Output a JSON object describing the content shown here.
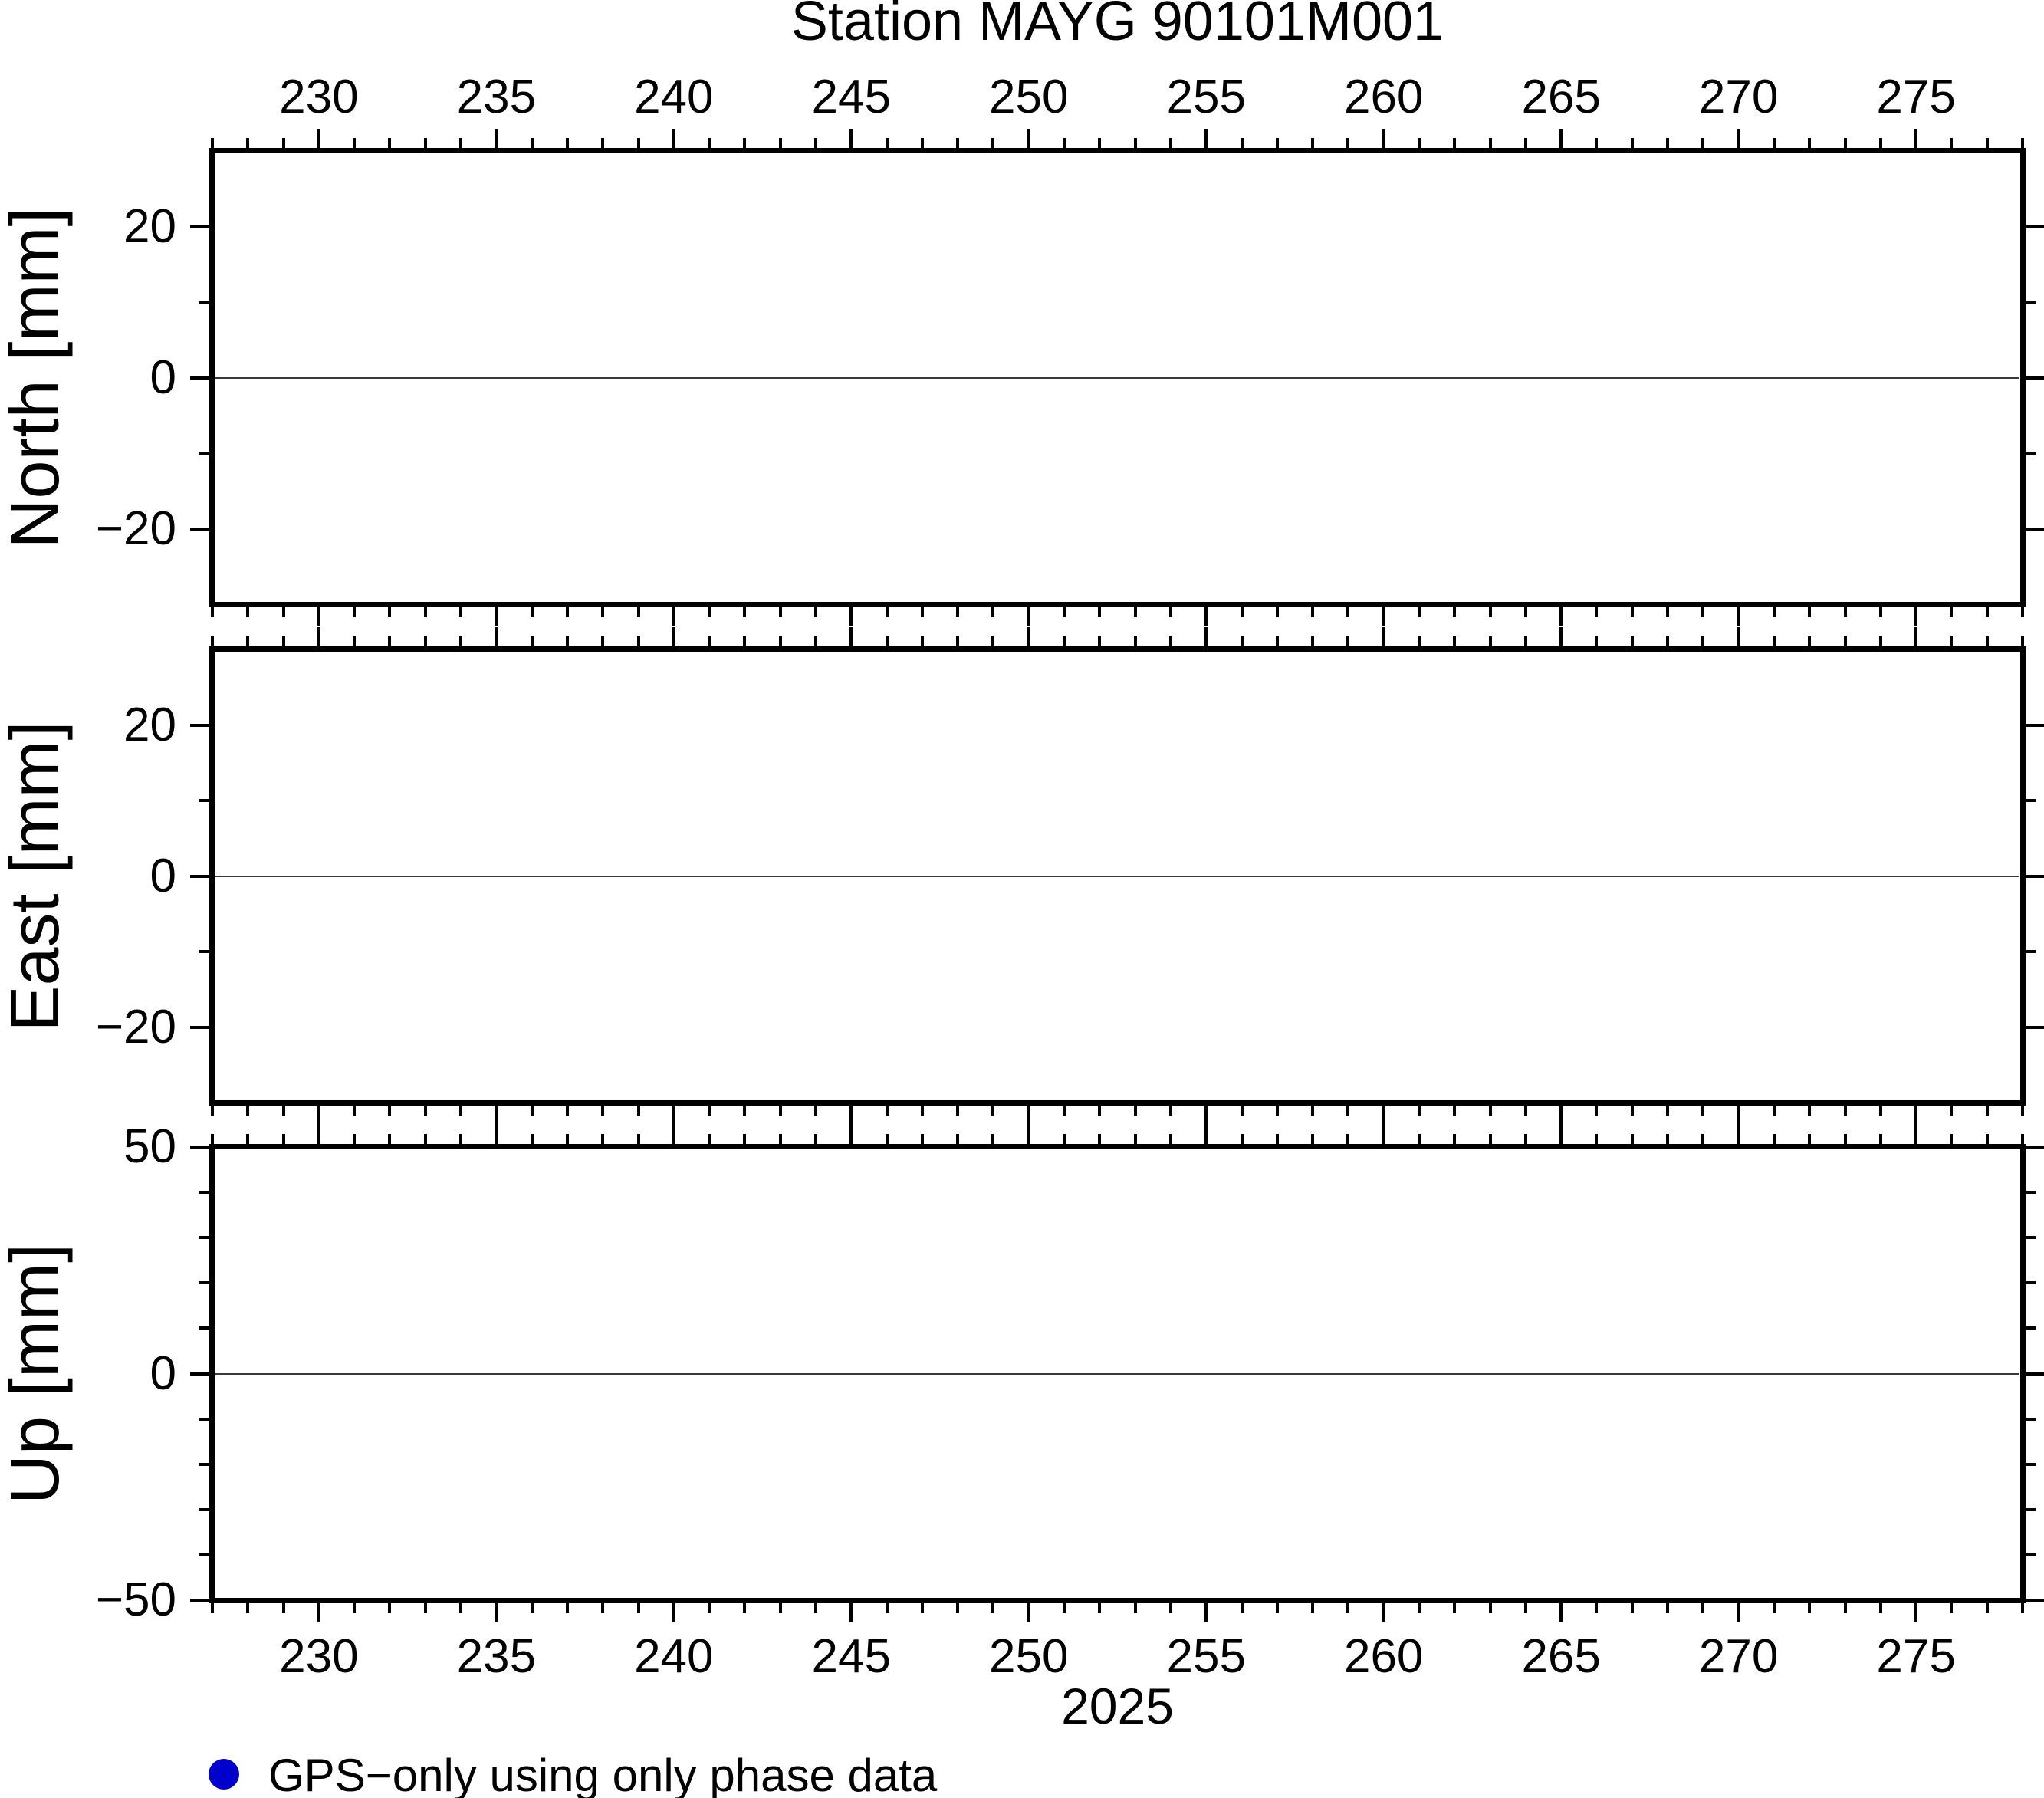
{
  "figure": {
    "title": "Station MAYG 90101M001",
    "xlabel": "2025",
    "background_color": "#FFFFFF",
    "frame_color": "#000000",
    "zero_line_color": "#3A3A3A"
  },
  "legend": {
    "marker": "filled-circle",
    "marker_color": "#0000CC",
    "label": "GPS−only using only phase data"
  },
  "chart_data": [
    {
      "type": "scatter",
      "panel": "north",
      "title": "Station MAYG 90101M001",
      "ylabel": "North [mm]",
      "xlabel": "2025",
      "xlim": [
        227,
        278
      ],
      "ylim": [
        -30,
        30
      ],
      "x_major_ticks": [
        230,
        235,
        240,
        245,
        250,
        255,
        260,
        265,
        270,
        275
      ],
      "x_minor_step": 1,
      "y_labeled_ticks": [
        -20,
        0,
        20
      ],
      "y_minor_step": 10,
      "x_tick_labels_side": "top",
      "grid": "zero-line-only",
      "zero_line": true,
      "series": [
        {
          "name": "GPS−only using only phase data",
          "color": "#0000CC",
          "x": [],
          "y": []
        }
      ]
    },
    {
      "type": "scatter",
      "panel": "east",
      "ylabel": "East [mm]",
      "xlim": [
        227,
        278
      ],
      "ylim": [
        -30,
        30
      ],
      "x_major_ticks": [
        230,
        235,
        240,
        245,
        250,
        255,
        260,
        265,
        270,
        275
      ],
      "x_minor_step": 1,
      "y_labeled_ticks": [
        -20,
        0,
        20
      ],
      "y_minor_step": 10,
      "x_tick_labels_side": "none",
      "grid": "zero-line-only",
      "zero_line": true,
      "series": [
        {
          "name": "GPS−only using only phase data",
          "color": "#0000CC",
          "x": [],
          "y": []
        }
      ]
    },
    {
      "type": "scatter",
      "panel": "up",
      "ylabel": "Up [mm]",
      "xlim": [
        227,
        278
      ],
      "ylim": [
        -50,
        50
      ],
      "x_major_ticks": [
        230,
        235,
        240,
        245,
        250,
        255,
        260,
        265,
        270,
        275
      ],
      "x_minor_step": 1,
      "y_labeled_ticks": [
        -50,
        0,
        50
      ],
      "y_minor_step": 10,
      "x_tick_labels_side": "bottom",
      "grid": "zero-line-only",
      "zero_line": true,
      "series": [
        {
          "name": "GPS−only using only phase data",
          "color": "#0000CC",
          "x": [],
          "y": []
        }
      ]
    }
  ]
}
